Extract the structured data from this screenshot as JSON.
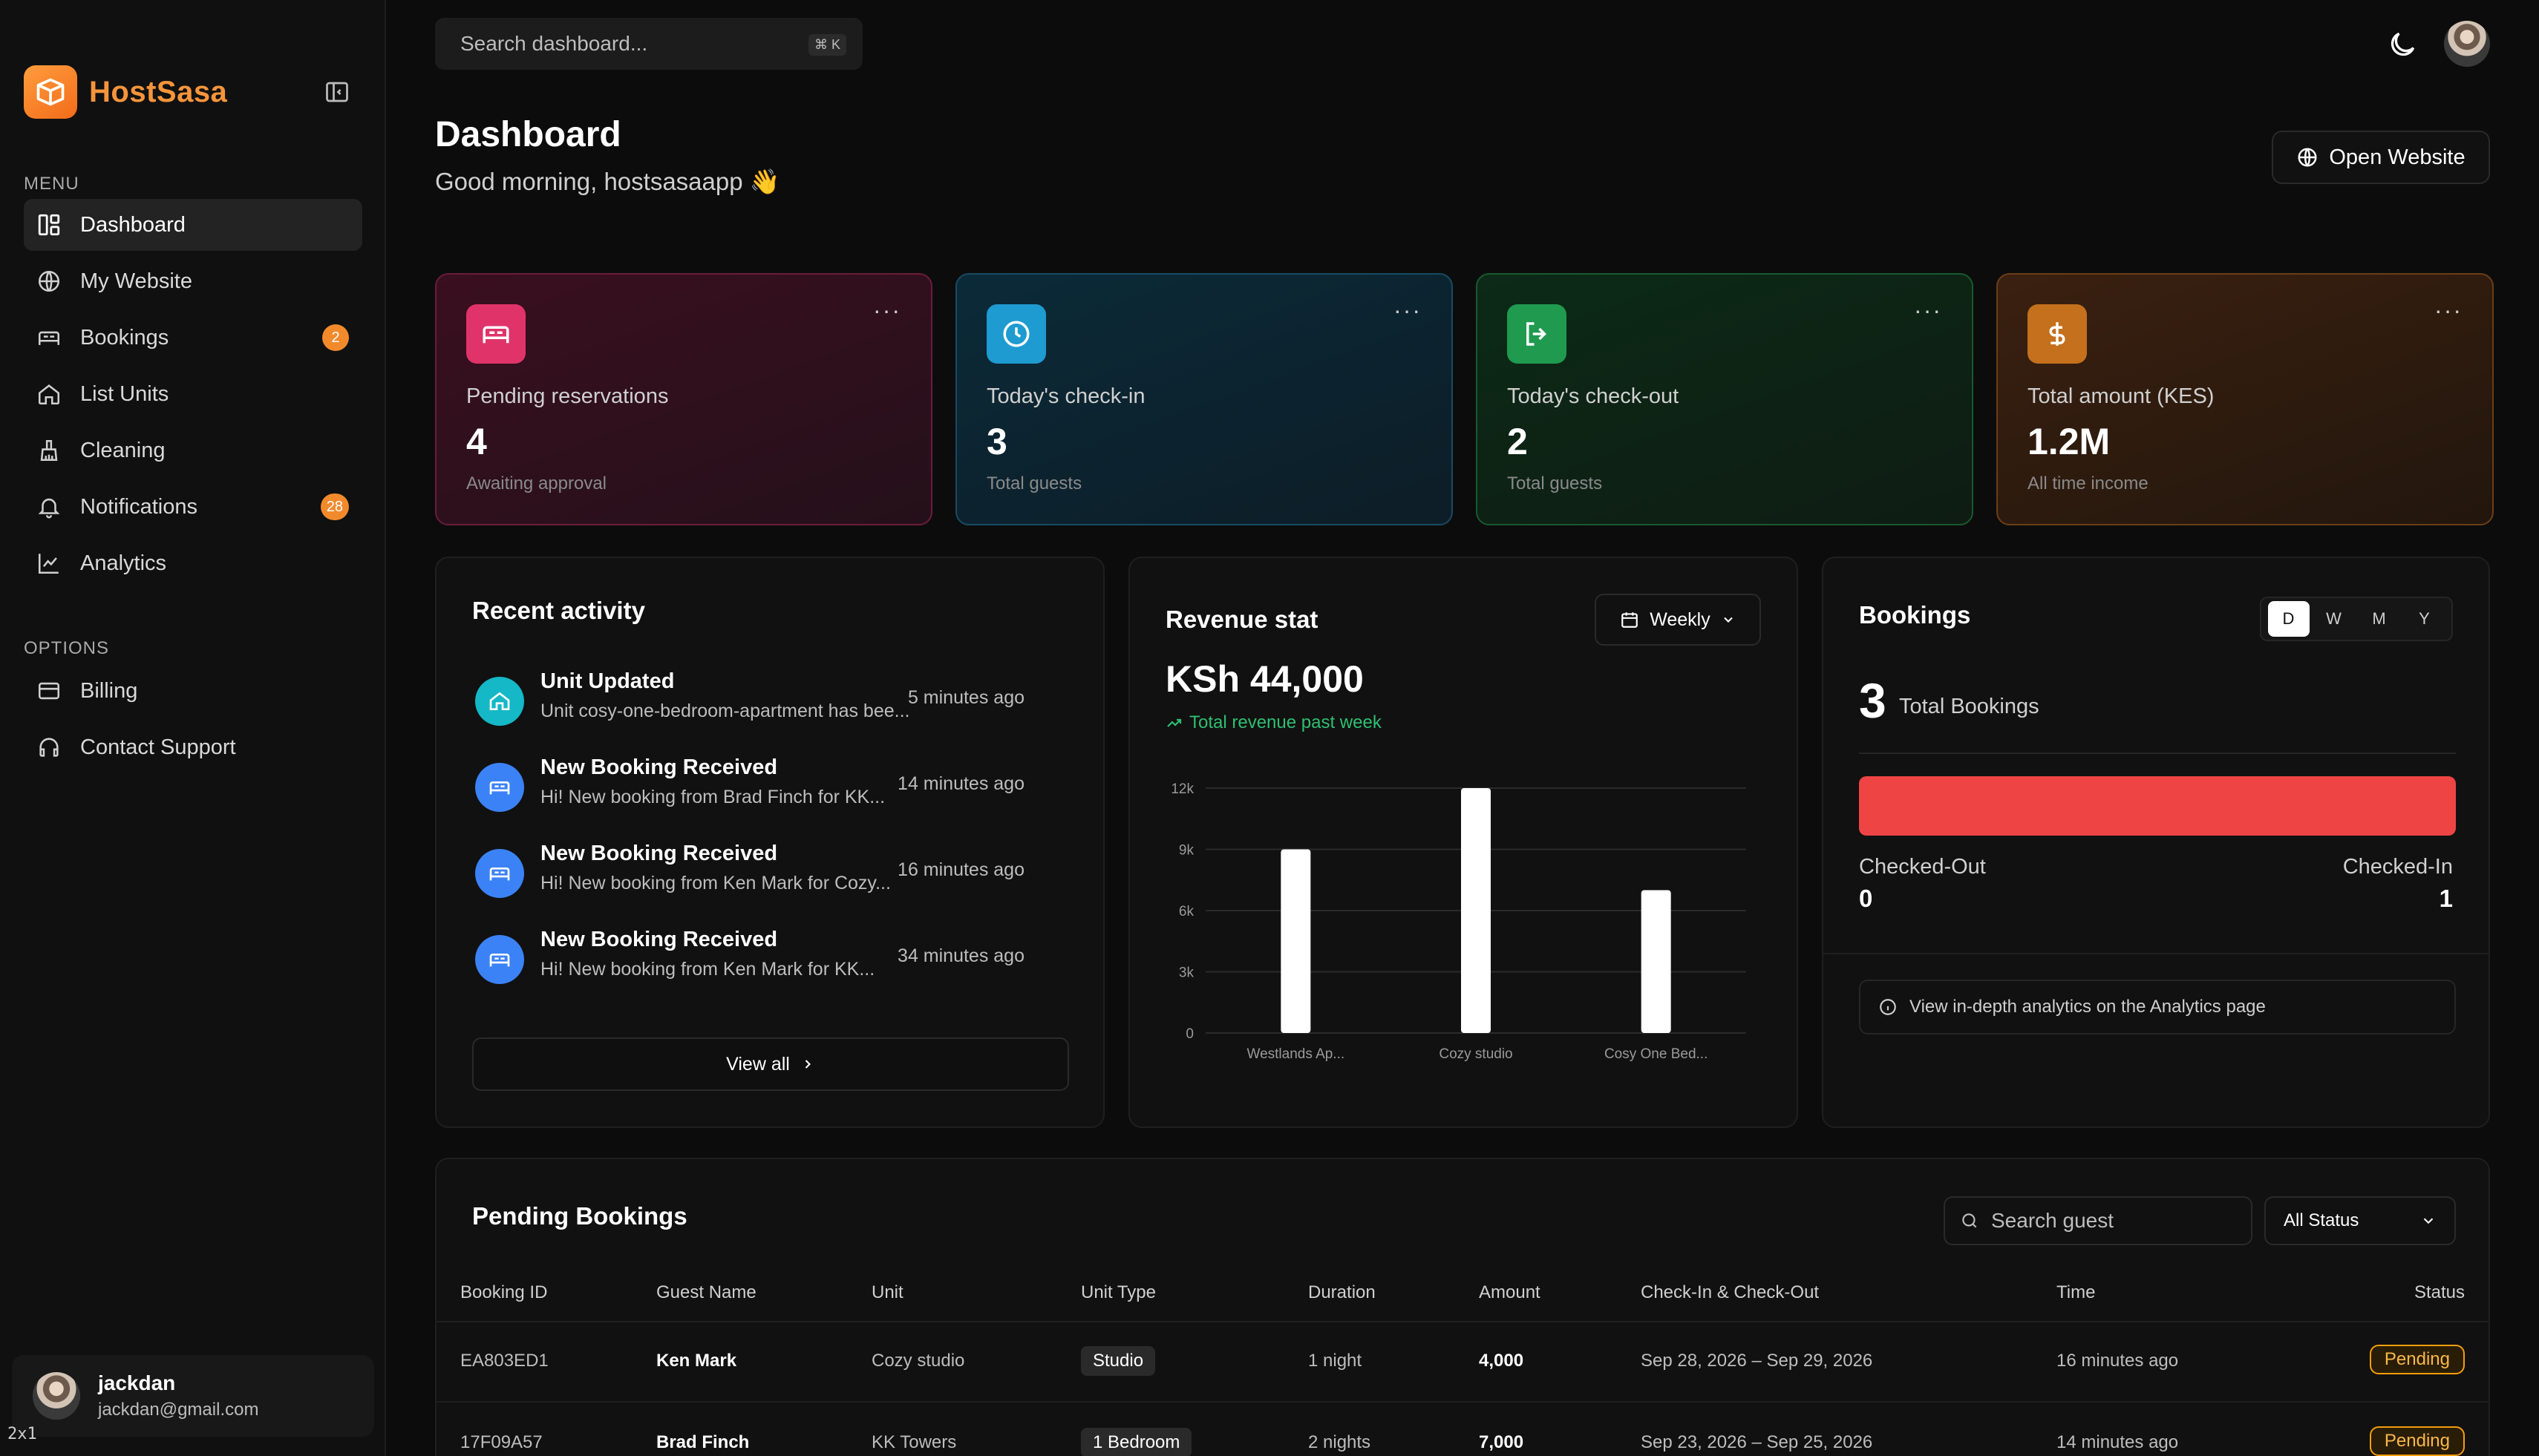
{
  "brand": {
    "name": "HostSasa"
  },
  "sidebar": {
    "menu_label": "MENU",
    "options_label": "OPTIONS",
    "items": [
      {
        "label": "Dashboard"
      },
      {
        "label": "My Website"
      },
      {
        "label": "Bookings",
        "badge": "2"
      },
      {
        "label": "List Units"
      },
      {
        "label": "Cleaning"
      },
      {
        "label": "Notifications",
        "badge": "28"
      },
      {
        "label": "Analytics"
      }
    ],
    "options": [
      {
        "label": "Billing"
      },
      {
        "label": "Contact Support"
      }
    ],
    "user": {
      "name": "jackdan",
      "email": "jackdan@gmail.com"
    },
    "scale_tag": "2x1"
  },
  "topbar": {
    "search_placeholder": "Search dashboard...",
    "shortcut": "⌘ K"
  },
  "header": {
    "title": "Dashboard",
    "greeting": "Good morning, hostsasaapp 👋",
    "open_website": "Open Website"
  },
  "stats": [
    {
      "label": "Pending reservations",
      "value": "4",
      "sub": "Awaiting approval",
      "icon": "bed-icon",
      "color": "#e0336a"
    },
    {
      "label": "Today's check-in",
      "value": "3",
      "sub": "Total guests",
      "icon": "clock-icon",
      "color": "#1e9bd0"
    },
    {
      "label": "Today's check-out",
      "value": "2",
      "sub": "Total guests",
      "icon": "logout-icon",
      "color": "#1f9a4f"
    },
    {
      "label": "Total amount (KES)",
      "value": "1.2M",
      "sub": "All time income",
      "icon": "dollar-icon",
      "color": "#c4701c"
    }
  ],
  "activity": {
    "title": "Recent activity",
    "items": [
      {
        "title": "Unit Updated",
        "desc": "Unit cosy-one-bedroom-apartment has bee...",
        "time": "5 minutes ago",
        "icon": "home-icon"
      },
      {
        "title": "New Booking Received",
        "desc": "Hi! New booking from Brad Finch for KK...",
        "time": "14 minutes ago",
        "icon": "bed-icon"
      },
      {
        "title": "New Booking Received",
        "desc": "Hi! New booking from Ken Mark for Cozy...",
        "time": "16 minutes ago",
        "icon": "bed-icon"
      },
      {
        "title": "New Booking Received",
        "desc": "Hi! New booking from Ken Mark for KK...",
        "time": "34 minutes ago",
        "icon": "bed-icon"
      }
    ],
    "view_all": "View all"
  },
  "revenue": {
    "title": "Revenue stat",
    "period": "Weekly",
    "value": "KSh 44,000",
    "sub": "Total revenue past week"
  },
  "chart_data": {
    "type": "bar",
    "categories": [
      "Westlands Ap...",
      "Cozy studio",
      "Cosy One Bed..."
    ],
    "values": [
      9000,
      12000,
      7000
    ],
    "ylim": [
      0,
      12000
    ],
    "yticks": [
      "0",
      "3k",
      "6k",
      "9k",
      "12k"
    ],
    "ytick_values": [
      0,
      3000,
      6000,
      9000,
      12000
    ],
    "grid": true,
    "bar_color": "#ffffff"
  },
  "bookings": {
    "title": "Bookings",
    "segments": [
      "D",
      "W",
      "M",
      "Y"
    ],
    "active_segment": "D",
    "total": "3",
    "total_label": "Total Bookings",
    "checked_out_label": "Checked-Out",
    "checked_out_value": "0",
    "checked_in_label": "Checked-In",
    "checked_in_value": "1",
    "note": "View in-depth analytics on the Analytics page"
  },
  "pending": {
    "title": "Pending Bookings",
    "search_placeholder": "Search guest",
    "status_filter": "All Status",
    "columns": [
      "Booking ID",
      "Guest Name",
      "Unit",
      "Unit Type",
      "Duration",
      "Amount",
      "Check-In & Check-Out",
      "Time",
      "Status"
    ],
    "rows": [
      {
        "id": "EA803ED1",
        "guest": "Ken Mark",
        "unit": "Cozy studio",
        "type": "Studio",
        "duration": "1 night",
        "amount": "4,000",
        "dates": "Sep 28, 2026 – Sep 29, 2026",
        "time": "16 minutes ago",
        "status": "Pending"
      },
      {
        "id": "17F09A57",
        "guest": "Brad Finch",
        "unit": "KK Towers",
        "type": "1 Bedroom",
        "duration": "2 nights",
        "amount": "7,000",
        "dates": "Sep 23, 2026 – Sep 25, 2026",
        "time": "14 minutes ago",
        "status": "Pending"
      }
    ]
  }
}
